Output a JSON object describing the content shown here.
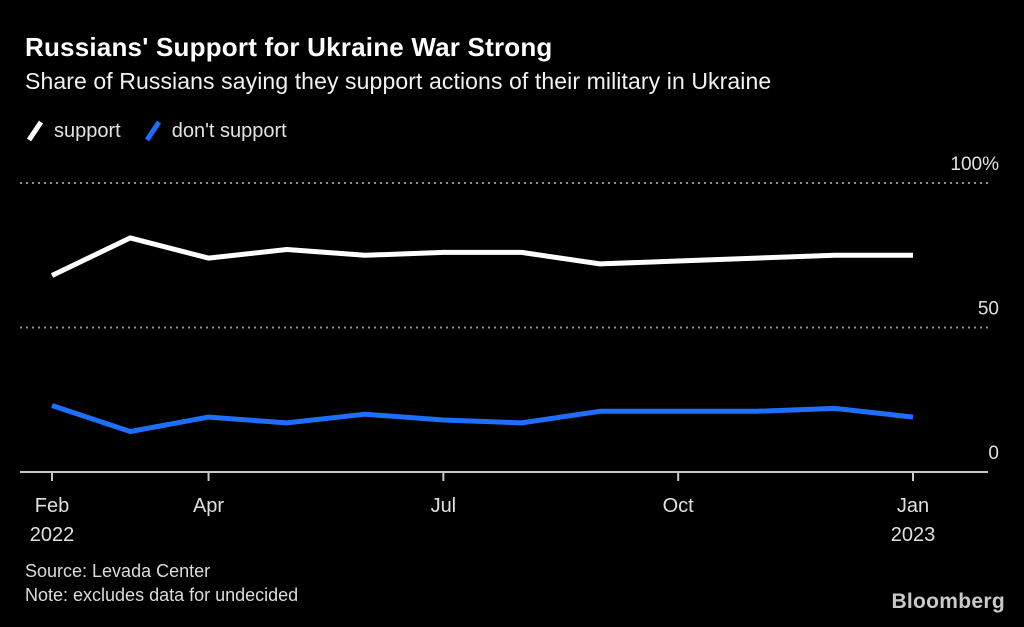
{
  "header": {
    "title": "Russians' Support for Ukraine War Strong",
    "subtitle": "Share of Russians saying they support actions of their military in Ukraine"
  },
  "legend": {
    "items": [
      {
        "label": "support",
        "color": "#ffffff"
      },
      {
        "label": "don't support",
        "color": "#1e6fff"
      }
    ]
  },
  "chart_data": {
    "type": "line",
    "x": [
      "Feb 2022",
      "Mar 2022",
      "Apr 2022",
      "May 2022",
      "Jun 2022",
      "Jul 2022",
      "Aug 2022",
      "Sep 2022",
      "Oct 2022",
      "Nov 2022",
      "Dec 2022",
      "Jan 2023"
    ],
    "series": [
      {
        "name": "support",
        "color": "#ffffff",
        "values": [
          68,
          81,
          74,
          77,
          75,
          76,
          76,
          72,
          73,
          74,
          75,
          75
        ]
      },
      {
        "name": "don't support",
        "color": "#1e6fff",
        "values": [
          23,
          14,
          19,
          17,
          20,
          18,
          17,
          21,
          21,
          21,
          22,
          19
        ]
      }
    ],
    "ylim": [
      0,
      100
    ],
    "yticks": [
      {
        "value": 0,
        "label": "0"
      },
      {
        "value": 50,
        "label": "50"
      },
      {
        "value": 100,
        "label": "100%"
      }
    ],
    "xticks": [
      {
        "index": 0,
        "line1": "Feb",
        "line2": "2022"
      },
      {
        "index": 2,
        "line1": "Apr",
        "line2": ""
      },
      {
        "index": 5,
        "line1": "Jul",
        "line2": ""
      },
      {
        "index": 8,
        "line1": "Oct",
        "line2": ""
      },
      {
        "index": 11,
        "line1": "Jan",
        "line2": "2023"
      }
    ],
    "grid": "horizontal dotted",
    "legend_position": "top-left",
    "colors": {
      "grid": "#8f8f8f",
      "axis": "#c8c8c8",
      "tick_label": "#e0e0e0"
    }
  },
  "footer": {
    "source": "Source: Levada Center",
    "note": "Note: excludes data for undecided",
    "brand": "Bloomberg"
  }
}
